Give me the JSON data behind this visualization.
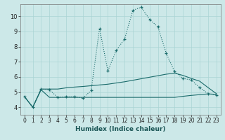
{
  "xlabel": "Humidex (Indice chaleur)",
  "xlim": [
    -0.5,
    23.5
  ],
  "ylim": [
    3.5,
    10.8
  ],
  "yticks": [
    4,
    5,
    6,
    7,
    8,
    9,
    10
  ],
  "xticks": [
    0,
    1,
    2,
    3,
    4,
    5,
    6,
    7,
    8,
    9,
    10,
    11,
    12,
    13,
    14,
    15,
    16,
    17,
    18,
    19,
    20,
    21,
    22,
    23
  ],
  "background_color": "#cce8e8",
  "grid_color": "#aad4d4",
  "line_color": "#1a6b6b",
  "line1_y": [
    4.7,
    4.0,
    5.2,
    5.15,
    4.65,
    4.7,
    4.7,
    4.6,
    5.1,
    9.2,
    6.4,
    7.75,
    8.5,
    10.4,
    10.6,
    9.8,
    9.3,
    7.55,
    6.35,
    5.9,
    5.8,
    5.3,
    4.9,
    4.8
  ],
  "line2_y": [
    4.7,
    4.0,
    5.2,
    5.2,
    5.2,
    5.28,
    5.33,
    5.37,
    5.42,
    5.47,
    5.52,
    5.6,
    5.68,
    5.78,
    5.88,
    5.98,
    6.08,
    6.18,
    6.25,
    6.1,
    5.9,
    5.72,
    5.3,
    4.9
  ],
  "line3_y": [
    4.7,
    4.0,
    5.15,
    4.65,
    4.65,
    4.65,
    4.65,
    4.65,
    4.65,
    4.65,
    4.65,
    4.65,
    4.65,
    4.65,
    4.65,
    4.65,
    4.65,
    4.65,
    4.65,
    4.72,
    4.78,
    4.83,
    4.88,
    4.85
  ],
  "tick_fontsize": 5.5,
  "xlabel_fontsize": 6.5
}
